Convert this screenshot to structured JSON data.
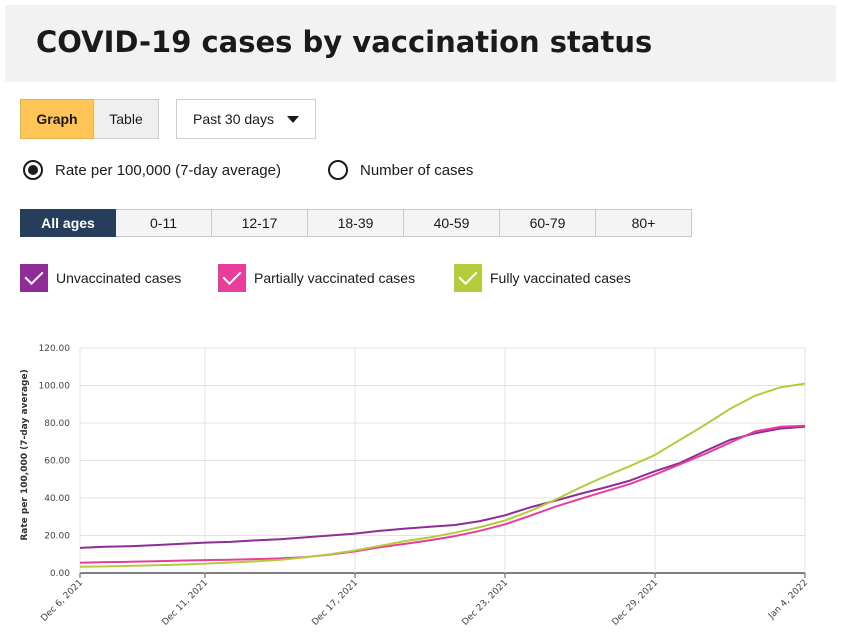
{
  "header": {
    "title": "COVID-19 cases by vaccination status"
  },
  "view_toggle": {
    "graph_label": "Graph",
    "table_label": "Table"
  },
  "range_select": {
    "value": "Past 30 days"
  },
  "measure": {
    "rate_label": "Rate per 100,000 (7-day average)",
    "count_label": "Number of cases",
    "selected": "rate"
  },
  "age_tabs": [
    "All ages",
    "0-11",
    "12-17",
    "18-39",
    "40-59",
    "60-79",
    "80+"
  ],
  "legend": [
    {
      "label": "Unvaccinated cases",
      "color": "#8e2d98"
    },
    {
      "label": "Partially vaccinated cases",
      "color": "#e83e9a"
    },
    {
      "label": "Fully vaccinated cases",
      "color": "#b4cc3c"
    }
  ],
  "chart_data": {
    "type": "line",
    "title": "",
    "xlabel": "",
    "ylabel": "Rate per 100,000 (7-day average)",
    "ylim": [
      0,
      120
    ],
    "yticks": [
      "0.00",
      "20.00",
      "40.00",
      "60.00",
      "80.00",
      "100.00",
      "120.00"
    ],
    "xticks": [
      {
        "index": 0,
        "label": "Dec 6, 2021"
      },
      {
        "index": 5,
        "label": "Dec 11, 2021"
      },
      {
        "index": 11,
        "label": "Dec 17, 2021"
      },
      {
        "index": 17,
        "label": "Dec 23, 2021"
      },
      {
        "index": 23,
        "label": "Dec 29, 2021"
      },
      {
        "index": 29,
        "label": "Jan 4, 2022"
      }
    ],
    "x": [
      "Dec 6",
      "Dec 7",
      "Dec 8",
      "Dec 9",
      "Dec 10",
      "Dec 11",
      "Dec 12",
      "Dec 13",
      "Dec 14",
      "Dec 15",
      "Dec 16",
      "Dec 17",
      "Dec 18",
      "Dec 19",
      "Dec 20",
      "Dec 21",
      "Dec 22",
      "Dec 23",
      "Dec 24",
      "Dec 25",
      "Dec 26",
      "Dec 27",
      "Dec 28",
      "Dec 29",
      "Dec 30",
      "Dec 31",
      "Jan 1",
      "Jan 2",
      "Jan 3",
      "Jan 4"
    ],
    "series": [
      {
        "name": "Unvaccinated cases",
        "color": "#8e2d98",
        "values": [
          13.4,
          14.0,
          14.3,
          14.9,
          15.5,
          16.2,
          16.6,
          17.4,
          18.0,
          19.0,
          20.0,
          21.0,
          22.5,
          23.7,
          24.7,
          25.6,
          27.7,
          30.8,
          35.0,
          38.5,
          42.2,
          45.6,
          49.3,
          54.3,
          58.7,
          65.0,
          71.0,
          74.5,
          77.0,
          78.0
        ]
      },
      {
        "name": "Partially vaccinated cases",
        "color": "#e83e9a",
        "values": [
          5.5,
          5.8,
          6.0,
          6.3,
          6.6,
          6.9,
          7.1,
          7.4,
          7.8,
          8.5,
          9.8,
          11.5,
          13.7,
          15.5,
          17.5,
          19.7,
          22.5,
          26.0,
          30.5,
          35.3,
          39.5,
          43.5,
          47.5,
          52.5,
          58.0,
          63.5,
          69.5,
          75.5,
          78.0,
          78.5
        ]
      },
      {
        "name": "Fully vaccinated cases",
        "color": "#b4cc3c",
        "values": [
          3.3,
          3.5,
          3.8,
          4.1,
          4.5,
          5.0,
          5.6,
          6.2,
          7.0,
          8.3,
          10.0,
          12.0,
          14.5,
          17.0,
          19.0,
          21.5,
          24.5,
          28.0,
          33.0,
          39.0,
          45.5,
          51.5,
          57.0,
          63.0,
          71.0,
          79.0,
          87.5,
          94.5,
          99.0,
          101.0
        ]
      }
    ]
  }
}
